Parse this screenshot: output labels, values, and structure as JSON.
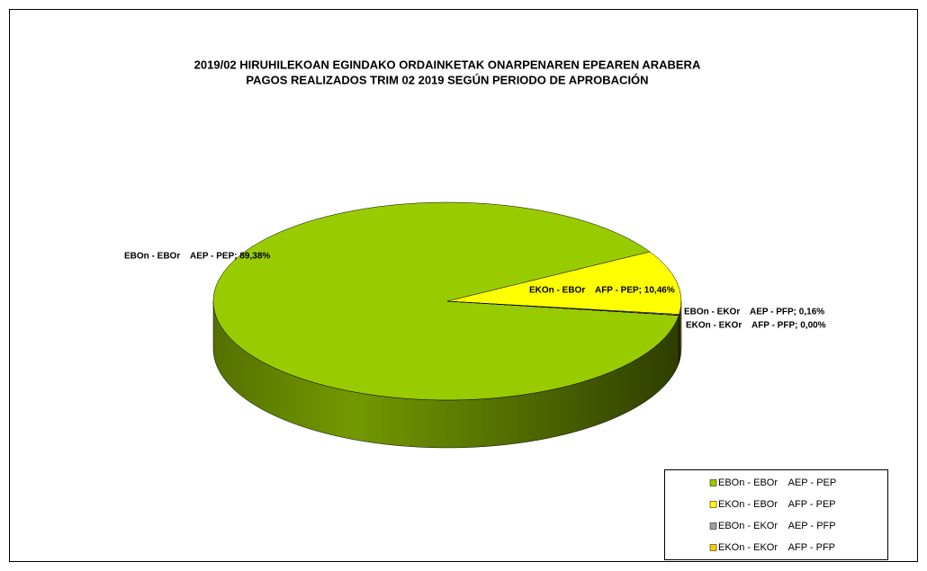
{
  "chart_data": {
    "type": "pie",
    "title": [
      "2019/02 HIRUHILEKOAN EGINDAKO ORDAINKETAK ONARPENAREN EPEAREN ARABERA",
      "PAGOS REALIZADOS TRIM 02 2019 SEGÚN PERIODO DE APROBACIÓN"
    ],
    "categories": [
      "EBOn - EBOr    AEP - PEP",
      "EKOn - EBOr    AFP - PEP",
      "EBOn - EKOr    AEP - PFP",
      "EKOn - EKOr    AFP - PFP"
    ],
    "values": [
      89.38,
      10.46,
      0.16,
      0.0
    ],
    "value_labels": [
      "EBOn - EBOr    AEP - PEP; 89,38%",
      "EKOn - EBOr    AFP - PEP; 10,46%",
      "EBOn - EKOr    AEP - PFP; 0,16%",
      "EKOn - EKOr    AFP - PFP; 0,00%"
    ],
    "colors": [
      "#99cc00",
      "#ffff00",
      "#a0a0a0",
      "#ffcc00"
    ],
    "legend": "bottom-right"
  }
}
